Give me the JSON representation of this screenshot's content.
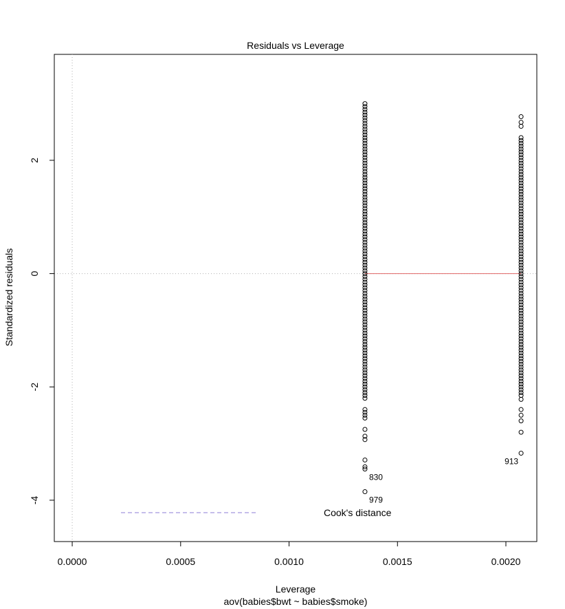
{
  "chart_data": {
    "type": "scatter",
    "title": "Residuals vs Leverage",
    "xlabel": "Leverage",
    "subtitle": "aov(babies$bwt ~ babies$smoke)",
    "ylabel": "Standardized residuals",
    "xlim": [
      -8.26e-05,
      0.0021426
    ],
    "ylim": [
      -4.73,
      3.87
    ],
    "x_ticks": [
      "0.0000",
      "0.0005",
      "0.0010",
      "0.0015",
      "0.0020"
    ],
    "x_tick_values": [
      0,
      0.0005,
      0.001,
      0.0015,
      0.002
    ],
    "y_ticks": [
      "-4",
      "-2",
      "0",
      "2"
    ],
    "y_tick_values": [
      -4,
      -2,
      0,
      2
    ],
    "grid": false,
    "reference_lines": {
      "x": 0,
      "y": 0
    },
    "points": [
      {
        "x": 0.00135,
        "y_min": -2.2,
        "y_max": 3.0,
        "step": 0.05
      },
      {
        "x": 0.00135,
        "y_values": [
          -2.4,
          -2.45,
          -2.5,
          -2.55,
          -2.75,
          -2.87,
          -2.93,
          -3.29,
          -3.41,
          -3.45,
          -3.85
        ]
      },
      {
        "x": 0.00207,
        "y_min": -2.15,
        "y_max": 2.4,
        "step": 0.05
      },
      {
        "x": 0.00207,
        "y_values": [
          -2.22,
          -2.4,
          -2.5,
          -2.6,
          -2.8,
          -3.17,
          2.6,
          2.67,
          2.77
        ]
      }
    ],
    "labeled_points": [
      {
        "label": "830",
        "x": 0.00135,
        "y": -3.45,
        "side": "right"
      },
      {
        "label": "979",
        "x": 0.00135,
        "y": -3.85,
        "side": "right"
      },
      {
        "label": "913",
        "x": 0.00207,
        "y": -3.17,
        "side": "left"
      }
    ],
    "smoother": [
      [
        0.00135,
        0.0
      ],
      [
        0.0017,
        0.0
      ],
      [
        0.00207,
        0.0
      ]
    ],
    "smoother_color": "#e06666",
    "cooks_legend": {
      "label": "Cook's distance",
      "color": "#8b7bd6",
      "position": "bottom-left"
    }
  }
}
